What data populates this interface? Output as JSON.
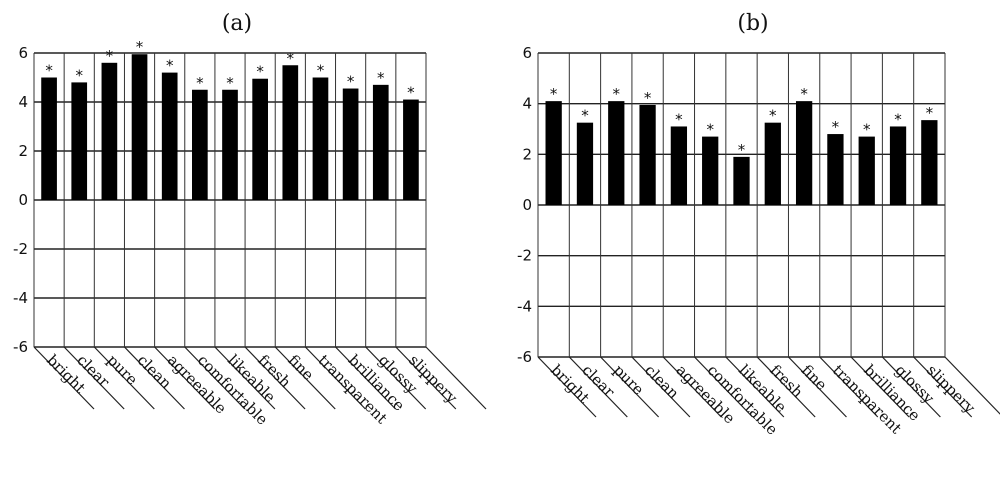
{
  "chart_data": [
    {
      "type": "bar",
      "title": "(a)",
      "categories": [
        "bright",
        "clear",
        "pure",
        "clean",
        "agreeable",
        "comfortable",
        "likeable",
        "fresh",
        "fine",
        "transparent",
        "brilliance",
        "glossy",
        "slippery"
      ],
      "values": [
        5.0,
        4.8,
        5.6,
        5.95,
        5.2,
        4.5,
        4.5,
        4.95,
        5.5,
        5.0,
        4.55,
        4.7,
        4.1
      ],
      "annotations": [
        "*",
        "*",
        "*",
        "*",
        "*",
        "*",
        "*",
        "*",
        "*",
        "*",
        "*",
        "*",
        "*"
      ],
      "yticks": [
        "6",
        "4",
        "2",
        "0",
        "-2",
        "-4",
        "-6"
      ],
      "ylim": [
        -6,
        6
      ],
      "grid": true
    },
    {
      "type": "bar",
      "title": "(b)",
      "categories": [
        "bright",
        "clear",
        "pure",
        "clean",
        "agreeable",
        "comfortable",
        "likeable",
        "fresh",
        "fine",
        "transparent",
        "brilliance",
        "glossy",
        "slippery"
      ],
      "values": [
        4.1,
        3.25,
        4.1,
        3.95,
        3.1,
        2.7,
        1.9,
        3.25,
        4.1,
        2.8,
        2.7,
        3.1,
        3.35
      ],
      "annotations": [
        "*",
        "*",
        "*",
        "*",
        "*",
        "*",
        "*",
        "*",
        "*",
        "*",
        "*",
        "*",
        "*"
      ],
      "yticks": [
        "6",
        "4",
        "2",
        "0",
        "-2",
        "-4",
        "-6"
      ],
      "ylim": [
        -6,
        6
      ],
      "grid": true
    }
  ]
}
